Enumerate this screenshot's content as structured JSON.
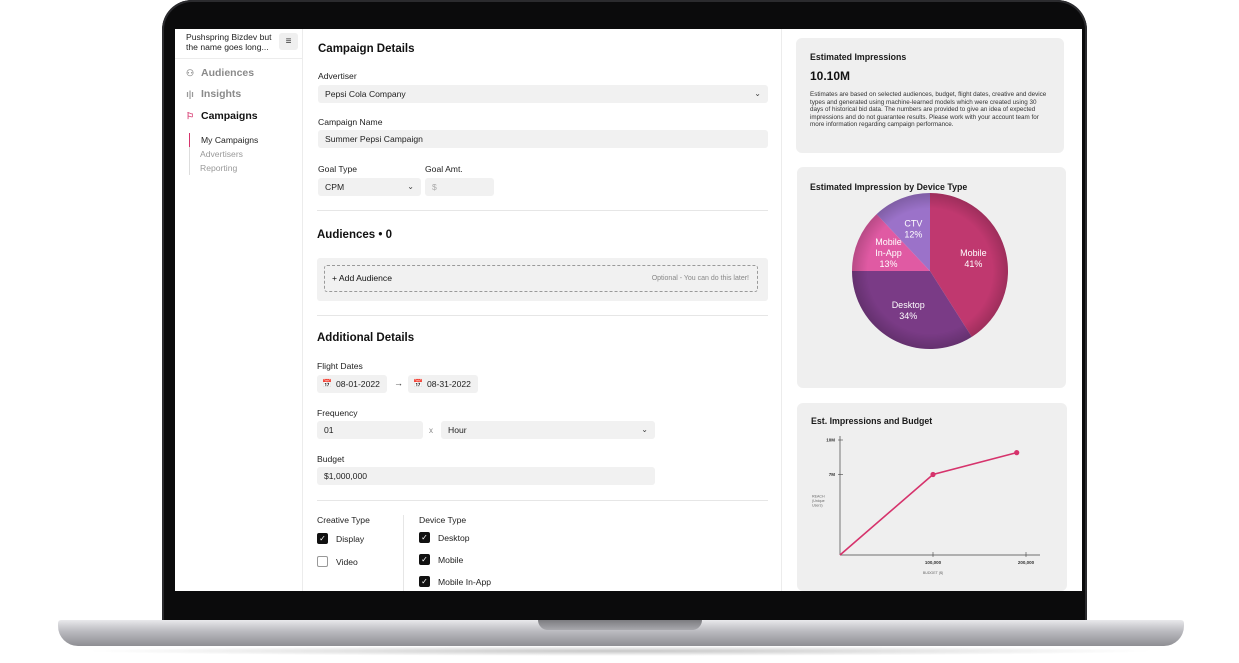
{
  "sidebar": {
    "org_name": "Pushspring Bizdev but the name goes long...",
    "menu_icon": "hamburger-icon",
    "nav": [
      {
        "label": "Audiences",
        "icon": "users-icon"
      },
      {
        "label": "Insights",
        "icon": "bar-chart-icon"
      },
      {
        "label": "Campaigns",
        "icon": "flag-icon",
        "active": true
      }
    ],
    "subnav": [
      {
        "label": "My Campaigns",
        "active": true
      },
      {
        "label": "Advertisers"
      },
      {
        "label": "Reporting"
      }
    ]
  },
  "form": {
    "campaign_details": {
      "title": "Campaign Details",
      "advertiser_label": "Advertiser",
      "advertiser_value": "Pepsi Cola Company",
      "name_label": "Campaign Name",
      "name_value": "Summer Pepsi Campaign",
      "goal_type_label": "Goal Type",
      "goal_type_value": "CPM",
      "goal_amt_label": "Goal Amt.",
      "goal_amt_placeholder": "$"
    },
    "audiences": {
      "title": "Audiences • 0",
      "add_label": "+ Add Audience",
      "optional_text": "Optional - You can do this later!"
    },
    "additional": {
      "title": "Additional Details",
      "flight_label": "Flight Dates",
      "start_date": "08-01-2022",
      "end_date": "08-31-2022",
      "frequency_label": "Frequency",
      "frequency_value": "01",
      "frequency_times": "x",
      "frequency_unit": "Hour",
      "budget_label": "Budget",
      "budget_value": "$1,000,000"
    },
    "creative_type": {
      "label": "Creative Type",
      "options": [
        {
          "label": "Display",
          "checked": true
        },
        {
          "label": "Video",
          "checked": false
        }
      ]
    },
    "device_type": {
      "label": "Device Type",
      "options": [
        {
          "label": "Desktop",
          "checked": true
        },
        {
          "label": "Mobile",
          "checked": true
        },
        {
          "label": "Mobile In-App",
          "checked": true
        }
      ]
    }
  },
  "estimates": {
    "title": "Estimated Impressions",
    "value": "10.10M",
    "description": "Estimates are based on selected audiences, budget, flight dates, creative and device types and generated using machine-learned models which were created using 30 days of historical bid data. The numbers are provided to give an idea of expected impressions and do not guarantee results. Please work with your account team for more information regarding campaign performance."
  },
  "device_chart_title": "Estimated Impression by Device Type",
  "budget_chart_title": "Est. Impressions and Budget",
  "colors": {
    "accent": "#d6336c",
    "mobile": "#c0386f",
    "desktop": "#7a3b86",
    "mobile_in_app": "#e05aa3",
    "ctv": "#9b72c9"
  },
  "chart_data": [
    {
      "type": "pie",
      "title": "Estimated Impression by Device Type",
      "slices": [
        {
          "label": "Mobile",
          "value": 41
        },
        {
          "label": "Desktop",
          "value": 34
        },
        {
          "label": "Mobile In-App",
          "value": 13
        },
        {
          "label": "CTV",
          "value": 12
        }
      ]
    },
    {
      "type": "line",
      "title": "Est. Impressions and Budget",
      "xlabel": "BUDGET ($)",
      "ylabel": "REACH (Unique Users)",
      "x_ticks": [
        "100,000",
        "200,000"
      ],
      "y_ticks": [
        "7M",
        "10M"
      ],
      "xlim": [
        0,
        200000
      ],
      "ylim": [
        0,
        10000000
      ],
      "x": [
        0,
        100000,
        190000
      ],
      "y": [
        0,
        7000000,
        8900000
      ]
    }
  ]
}
